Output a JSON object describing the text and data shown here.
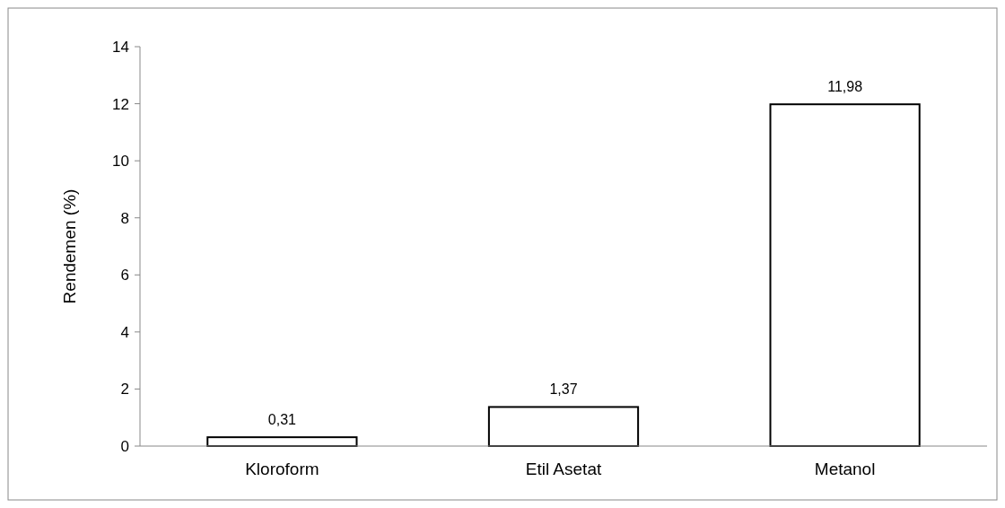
{
  "chart_data": {
    "type": "bar",
    "ylabel": "Rendemen (%)",
    "categories": [
      "Kloroform",
      "Etil Asetat",
      "Metanol"
    ],
    "values": [
      0.31,
      1.37,
      11.98
    ],
    "value_labels": [
      "0,31",
      "1,37",
      "11,98"
    ],
    "color": "#ffffff",
    "ylim": [
      0,
      14
    ],
    "yticks": [
      0,
      2,
      4,
      6,
      8,
      10,
      12,
      14
    ],
    "grid": false
  }
}
